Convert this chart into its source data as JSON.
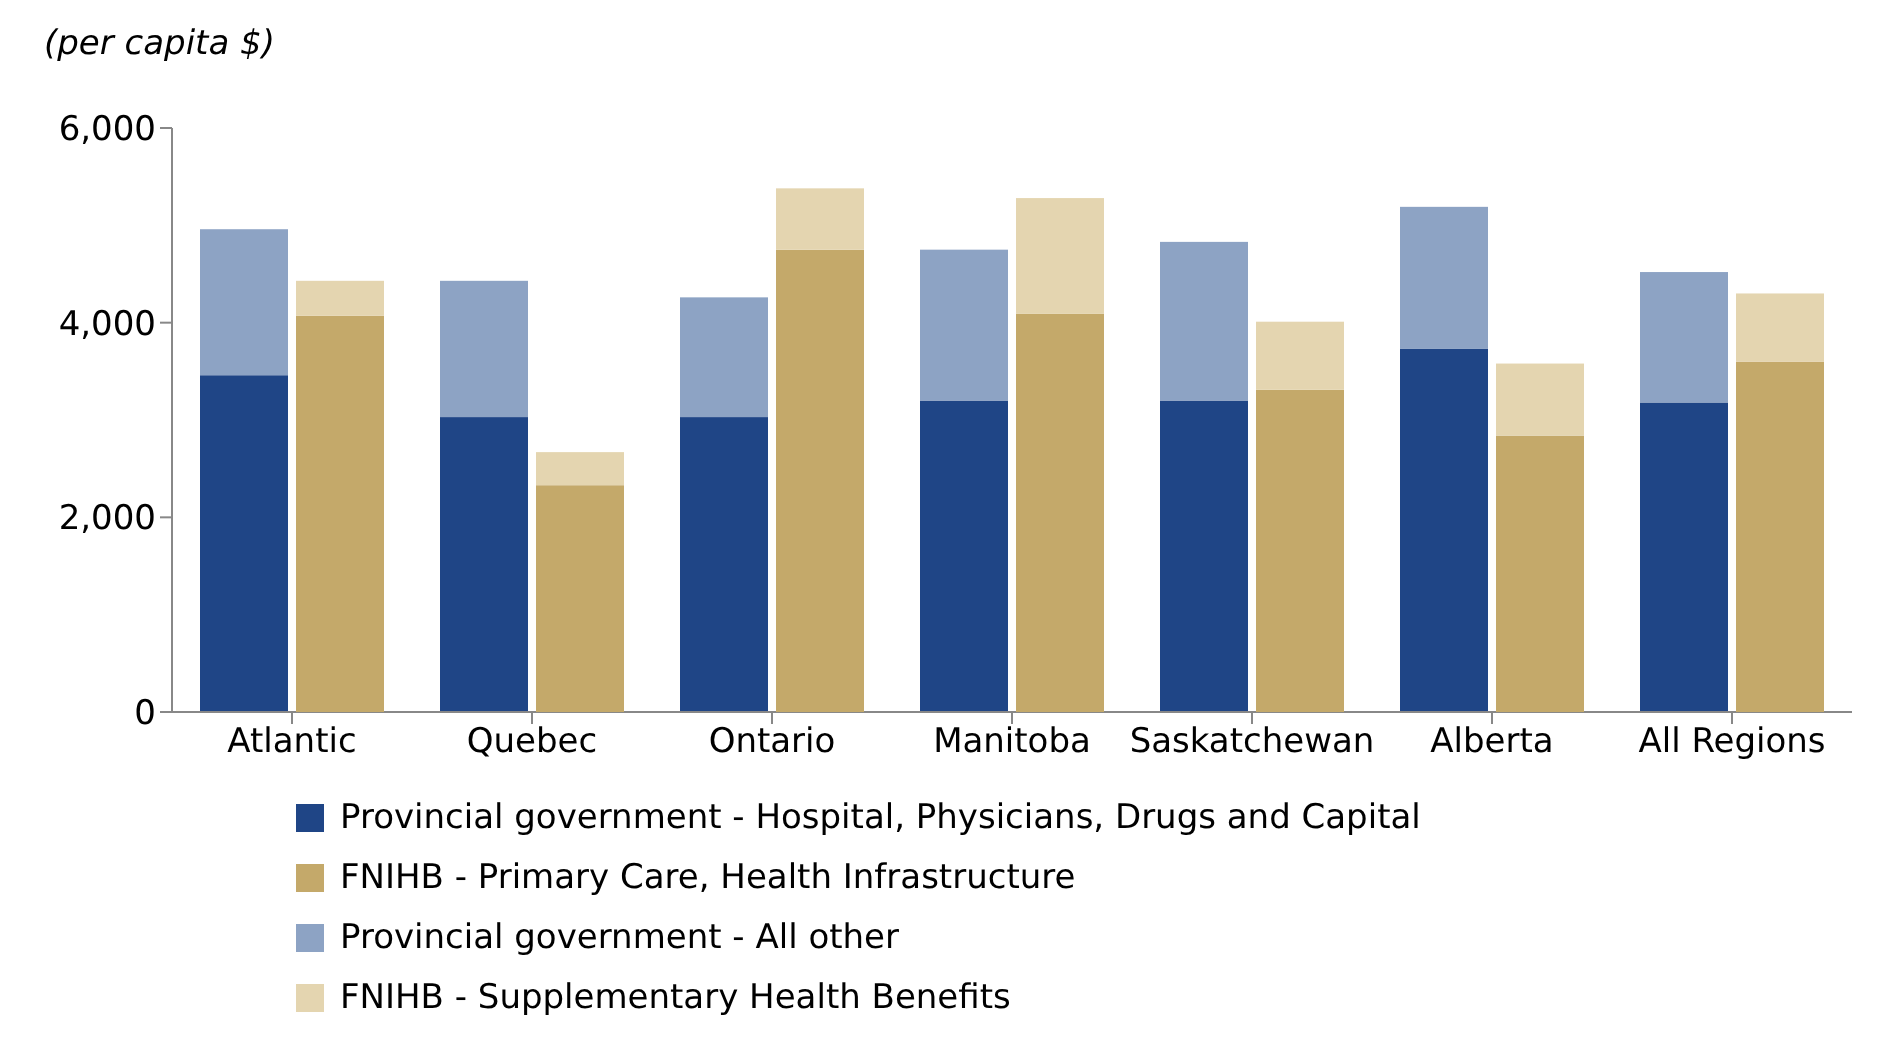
{
  "chart_data": [
    {
      "type": "bar",
      "ylabel": "(per capita $)",
      "categories": [
        "Atlantic",
        "Quebec",
        "Ontario",
        "Manitoba",
        "Saskatchewan",
        "Alberta",
        "All Regions"
      ],
      "stacked": true,
      "ylim": [
        0,
        6000
      ],
      "yticks": [
        {
          "value": 0,
          "label": "0"
        },
        {
          "value": 2000,
          "label": "2,000"
        },
        {
          "value": 4000,
          "label": "4,000"
        },
        {
          "value": 6000,
          "label": "6,000"
        }
      ],
      "legend": "bottom",
      "series": [
        {
          "name": "Provincial government - Hospital, Physicians, Drugs and Capital",
          "color": "#1f4586",
          "values": [
            3460,
            3030,
            3030,
            3200,
            3200,
            3730,
            3180
          ]
        },
        {
          "name": "Provincial government - All other",
          "color": "#8da3c4",
          "values": [
            1500,
            1400,
            1230,
            1550,
            1630,
            1460,
            1340
          ]
        }
      ]
    },
    {
      "type": "bar",
      "categories": [
        null,
        null,
        null,
        null,
        null,
        null,
        null
      ],
      "stacked": true,
      "ylim": [
        0,
        6000
      ],
      "tick_labels": false,
      "legend": "bottom",
      "series": [
        {
          "name": "FNIHB - Primary Care, Health Infrastructure",
          "color": "#c4a96a",
          "values": [
            4070,
            2330,
            4750,
            4090,
            3310,
            2840,
            3600
          ]
        },
        {
          "name": "FNIHB - Supplementary Health Benefits",
          "color": "#e4d5b0",
          "values": [
            360,
            340,
            630,
            1190,
            700,
            740,
            700
          ]
        }
      ]
    }
  ]
}
